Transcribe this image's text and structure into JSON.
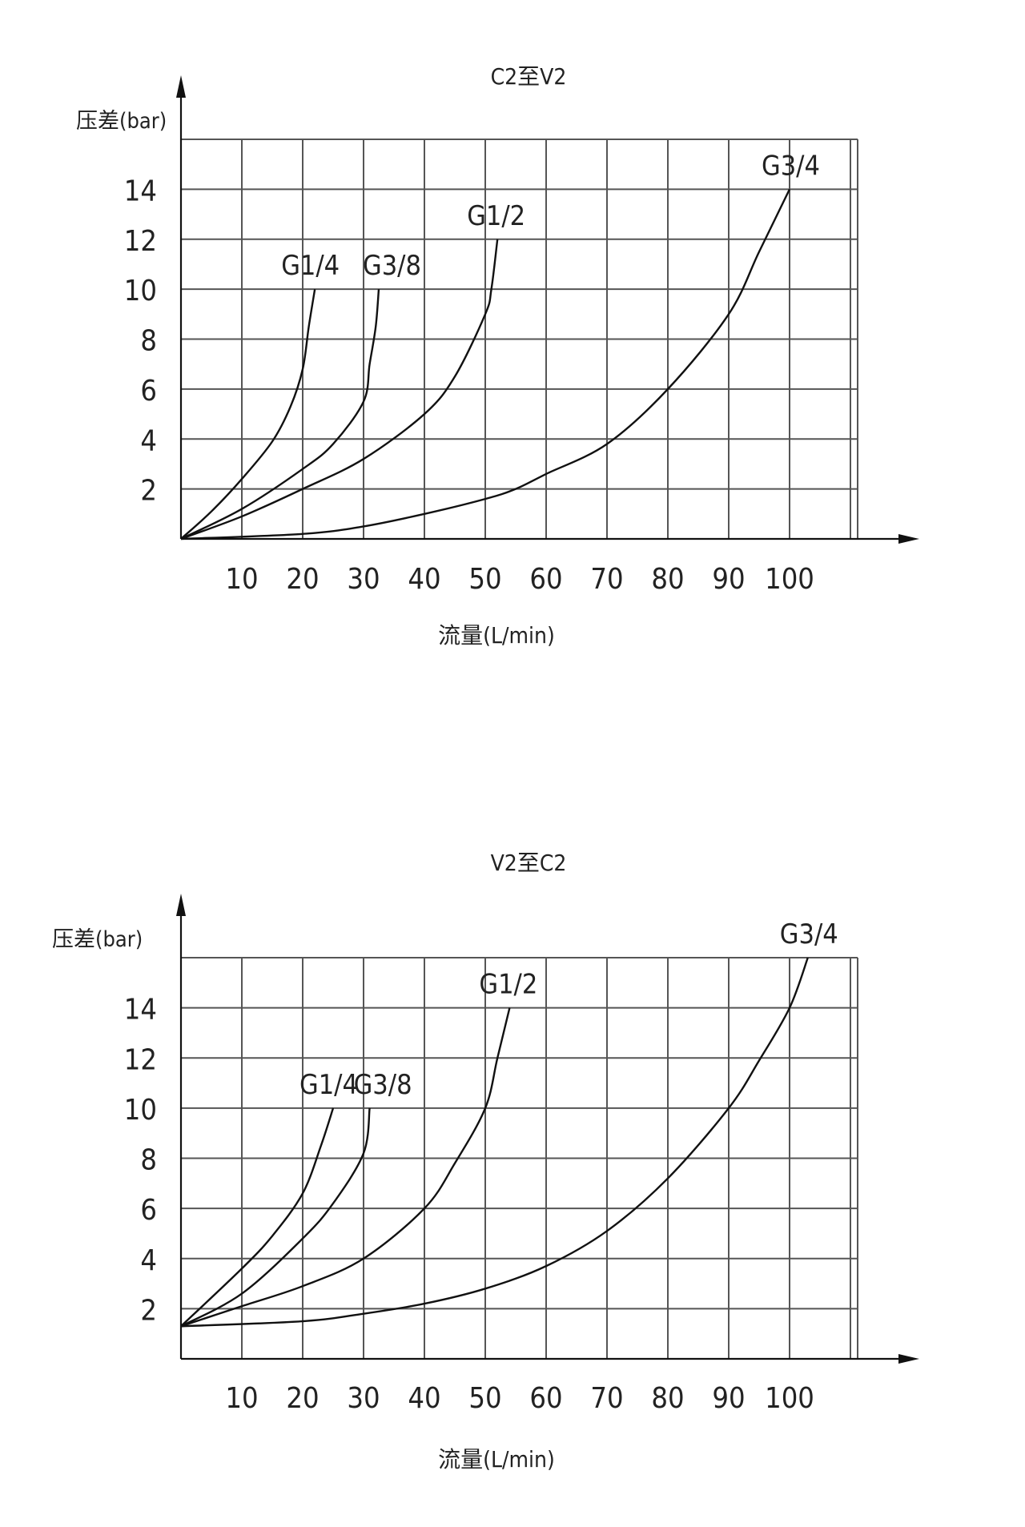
{
  "chart_data": [
    {
      "type": "line",
      "title": "C2至V2",
      "xlabel": "流量(L/min)",
      "ylabel": "压差(bar)",
      "xlim": [
        0,
        110
      ],
      "ylim": [
        0,
        16
      ],
      "x_ticks": [
        "10",
        "20",
        "30",
        "40",
        "50",
        "60",
        "70",
        "80",
        "90",
        "100"
      ],
      "y_ticks": [
        "2",
        "4",
        "6",
        "8",
        "10",
        "12",
        "14"
      ],
      "grid": true,
      "series": [
        {
          "name": "G1/4",
          "points": [
            [
              0,
              0
            ],
            [
              5,
              1.1
            ],
            [
              10,
              2.4
            ],
            [
              15,
              3.9
            ],
            [
              18,
              5.3
            ],
            [
              20,
              6.8
            ],
            [
              21,
              8.5
            ],
            [
              22,
              10
            ]
          ]
        },
        {
          "name": "G3/8",
          "points": [
            [
              0,
              0
            ],
            [
              10,
              1.2
            ],
            [
              20,
              2.8
            ],
            [
              25,
              3.8
            ],
            [
              30,
              5.5
            ],
            [
              31,
              7
            ],
            [
              32,
              8.5
            ],
            [
              32.5,
              10
            ]
          ]
        },
        {
          "name": "G1/2",
          "points": [
            [
              0,
              0
            ],
            [
              10,
              0.9
            ],
            [
              20,
              2
            ],
            [
              30,
              3.2
            ],
            [
              40,
              5
            ],
            [
              45,
              6.5
            ],
            [
              50,
              9
            ],
            [
              51,
              10
            ],
            [
              52,
              12
            ]
          ]
        },
        {
          "name": "G3/4",
          "points": [
            [
              0,
              0
            ],
            [
              20,
              0.2
            ],
            [
              30,
              0.5
            ],
            [
              40,
              1
            ],
            [
              50,
              1.6
            ],
            [
              55,
              2
            ],
            [
              60,
              2.6
            ],
            [
              70,
              3.8
            ],
            [
              80,
              6
            ],
            [
              90,
              9
            ],
            [
              95,
              11.5
            ],
            [
              100,
              14
            ]
          ]
        }
      ]
    },
    {
      "type": "line",
      "title": "V2至C2",
      "xlabel": "流量(L/min)",
      "ylabel": "压差(bar)",
      "xlim": [
        0,
        110
      ],
      "ylim": [
        0,
        16
      ],
      "x_ticks": [
        "10",
        "20",
        "30",
        "40",
        "50",
        "60",
        "70",
        "80",
        "90",
        "100"
      ],
      "y_ticks": [
        "2",
        "4",
        "6",
        "8",
        "10",
        "12",
        "14"
      ],
      "grid": true,
      "series": [
        {
          "name": "G1/4",
          "points": [
            [
              0,
              1.3
            ],
            [
              10,
              3.6
            ],
            [
              15,
              4.9
            ],
            [
              20,
              6.6
            ],
            [
              23,
              8.5
            ],
            [
              25,
              10
            ]
          ]
        },
        {
          "name": "G3/8",
          "points": [
            [
              0,
              1.3
            ],
            [
              10,
              2.6
            ],
            [
              20,
              4.8
            ],
            [
              25,
              6.2
            ],
            [
              30,
              8.2
            ],
            [
              31,
              10
            ]
          ]
        },
        {
          "name": "G1/2",
          "points": [
            [
              0,
              1.3
            ],
            [
              10,
              2.1
            ],
            [
              20,
              2.9
            ],
            [
              30,
              4
            ],
            [
              40,
              6
            ],
            [
              45,
              7.8
            ],
            [
              50,
              10
            ],
            [
              52,
              12
            ],
            [
              54,
              14
            ]
          ]
        },
        {
          "name": "G3/4",
          "points": [
            [
              0,
              1.3
            ],
            [
              20,
              1.5
            ],
            [
              30,
              1.8
            ],
            [
              40,
              2.2
            ],
            [
              50,
              2.8
            ],
            [
              60,
              3.7
            ],
            [
              70,
              5.1
            ],
            [
              80,
              7.2
            ],
            [
              90,
              10
            ],
            [
              95,
              11.9
            ],
            [
              100,
              14
            ],
            [
              103,
              16
            ]
          ]
        }
      ]
    }
  ]
}
